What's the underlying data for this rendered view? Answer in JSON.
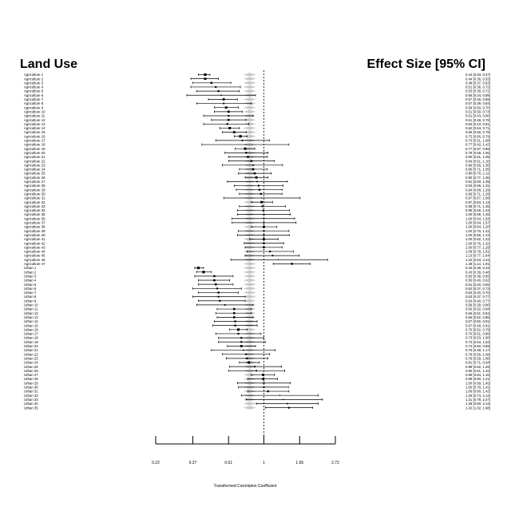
{
  "chart_data": {
    "type": "forest",
    "header_left": "Land Use",
    "header_right": "Effect Size [95% CI]",
    "xlabel": "Transformed Correlation Coefficient",
    "x_ticks": [
      "0.22",
      "0.37",
      "0.61",
      "1",
      "1.65",
      "2.72"
    ],
    "x_scale": "log",
    "xlim": [
      0.22,
      2.72
    ],
    "reference_line": 1,
    "studies": [
      {
        "label": "Agriculture 1",
        "est": 0.44,
        "lo": 0.4,
        "hi": 0.47,
        "ci": "0.44 [0.40, 0.47]"
      },
      {
        "label": "Agriculture 2",
        "est": 0.44,
        "lo": 0.36,
        "hi": 0.53,
        "ci": "0.44 [0.36, 0.53]"
      },
      {
        "label": "Agriculture 3",
        "est": 0.48,
        "lo": 0.37,
        "hi": 0.63,
        "ci": "0.48 [0.37, 0.63]"
      },
      {
        "label": "Agriculture 4",
        "est": 0.51,
        "lo": 0.36,
        "hi": 0.72,
        "ci": "0.51 [0.36, 0.72]"
      },
      {
        "label": "Agriculture 5",
        "est": 0.53,
        "lo": 0.39,
        "hi": 0.71,
        "ci": "0.53 [0.39, 0.71]"
      },
      {
        "label": "Agriculture 6",
        "est": 0.55,
        "lo": 0.34,
        "hi": 0.89,
        "ci": "0.55 [0.34, 0.89]"
      },
      {
        "label": "Agriculture 7",
        "est": 0.57,
        "lo": 0.46,
        "hi": 0.69,
        "ci": "0.57 [0.46, 0.69]"
      },
      {
        "label": "Agriculture 8",
        "est": 0.57,
        "lo": 0.39,
        "hi": 0.84,
        "ci": "0.57 [0.39, 0.84]"
      },
      {
        "label": "Agriculture 9",
        "est": 0.59,
        "lo": 0.5,
        "hi": 0.7,
        "ci": "0.59 [0.50, 0.70]"
      },
      {
        "label": "Agriculture 10",
        "est": 0.61,
        "lo": 0.5,
        "hi": 0.74,
        "ci": "0.61 [0.50, 0.74]"
      },
      {
        "label": "Agriculture 11",
        "est": 0.61,
        "lo": 0.43,
        "hi": 0.86,
        "ci": "0.61 [0.43, 0.86]"
      },
      {
        "label": "Agriculture 12",
        "est": 0.61,
        "lo": 0.48,
        "hi": 0.78,
        "ci": "0.61 [0.48, 0.78]"
      },
      {
        "label": "Agriculture 13",
        "est": 0.6,
        "lo": 0.43,
        "hi": 0.81,
        "ci": "0.60 [0.43, 0.81]"
      },
      {
        "label": "Agriculture 14",
        "est": 0.62,
        "lo": 0.54,
        "hi": 0.71,
        "ci": "0.62 [0.54, 0.71]"
      },
      {
        "label": "Agriculture 15",
        "est": 0.66,
        "lo": 0.56,
        "hi": 0.78,
        "ci": "0.66 [0.56, 0.78]"
      },
      {
        "label": "Agriculture 16",
        "est": 0.72,
        "lo": 0.66,
        "hi": 0.79,
        "ci": "0.72 [0.66, 0.79]"
      },
      {
        "label": "Agriculture 17",
        "est": 0.74,
        "lo": 0.51,
        "hi": 1.08,
        "ci": "0.74 [0.51, 1.08]"
      },
      {
        "label": "Agriculture 18",
        "est": 0.77,
        "lo": 0.42,
        "hi": 1.42,
        "ci": "0.77 [0.42, 1.42]"
      },
      {
        "label": "Agriculture 19",
        "est": 0.77,
        "lo": 0.67,
        "hi": 0.88,
        "ci": "0.77 [0.67, 0.88]"
      },
      {
        "label": "Agriculture 20",
        "est": 0.78,
        "lo": 0.58,
        "hi": 1.06,
        "ci": "0.78 [0.58, 1.06]"
      },
      {
        "label": "Agriculture 21",
        "est": 0.8,
        "lo": 0.61,
        "hi": 1.05,
        "ci": "0.80 [0.61, 1.05]"
      },
      {
        "label": "Agriculture 22",
        "est": 0.84,
        "lo": 0.61,
        "hi": 1.16,
        "ci": "0.84 [0.61, 1.16]"
      },
      {
        "label": "Agriculture 23",
        "est": 0.86,
        "lo": 0.56,
        "hi": 1.3,
        "ci": "0.86 [0.56, 1.30]"
      },
      {
        "label": "Agriculture 24",
        "est": 0.86,
        "lo": 0.71,
        "hi": 1.05,
        "ci": "0.86 [0.71, 1.05]"
      },
      {
        "label": "Agriculture 25",
        "est": 0.88,
        "lo": 0.7,
        "hi": 1.11,
        "ci": "0.88 [0.70, 1.11]"
      },
      {
        "label": "Agriculture 26",
        "est": 0.9,
        "lo": 0.77,
        "hi": 1.06,
        "ci": "0.90 [0.77, 1.06]"
      },
      {
        "label": "Agriculture 27",
        "est": 0.91,
        "lo": 0.6,
        "hi": 1.39,
        "ci": "0.91 [0.60, 1.39]"
      },
      {
        "label": "Agriculture 28",
        "est": 0.93,
        "lo": 0.66,
        "hi": 1.31,
        "ci": "0.93 [0.66, 1.31]"
      },
      {
        "label": "Agriculture 29",
        "est": 0.94,
        "lo": 0.68,
        "hi": 1.29,
        "ci": "0.94 [0.68, 1.29]"
      },
      {
        "label": "Agriculture 30",
        "est": 0.96,
        "lo": 0.71,
        "hi": 1.29,
        "ci": "0.96 [0.71, 1.29]"
      },
      {
        "label": "Agriculture 31",
        "est": 0.97,
        "lo": 0.57,
        "hi": 1.66,
        "ci": "0.97 [0.57, 1.66]"
      },
      {
        "label": "Agriculture 32",
        "est": 0.97,
        "lo": 0.84,
        "hi": 1.13,
        "ci": "0.97 [0.84, 1.13]"
      },
      {
        "label": "Agriculture 33",
        "est": 0.98,
        "lo": 0.71,
        "hi": 1.35,
        "ci": "0.98 [0.71, 1.35]"
      },
      {
        "label": "Agriculture 34",
        "est": 0.99,
        "lo": 0.69,
        "hi": 1.43,
        "ci": "0.99 [0.69, 1.43]"
      },
      {
        "label": "Agriculture 35",
        "est": 1.0,
        "lo": 0.69,
        "hi": 1.45,
        "ci": "1.00 [0.69, 1.45]"
      },
      {
        "label": "Agriculture 36",
        "est": 1.0,
        "lo": 0.64,
        "hi": 1.54,
        "ci": "1.00 [0.64, 1.54]"
      },
      {
        "label": "Agriculture 37",
        "est": 1.0,
        "lo": 0.64,
        "hi": 1.57,
        "ci": "1.00 [0.64, 1.57]"
      },
      {
        "label": "Agriculture 38",
        "est": 1.0,
        "lo": 0.84,
        "hi": 1.2,
        "ci": "1.00 [0.84, 1.20]"
      },
      {
        "label": "Agriculture 39",
        "est": 1.0,
        "lo": 0.7,
        "hi": 1.42,
        "ci": "1.00 [0.70, 1.42]"
      },
      {
        "label": "Agriculture 40",
        "est": 1.0,
        "lo": 0.69,
        "hi": 1.43,
        "ci": "1.00 [0.69, 1.43]"
      },
      {
        "label": "Agriculture 41",
        "est": 1.0,
        "lo": 0.82,
        "hi": 1.22,
        "ci": "1.00 [0.82, 1.22]"
      },
      {
        "label": "Agriculture 42",
        "est": 1.0,
        "lo": 0.76,
        "hi": 1.32,
        "ci": "1.00 [0.76, 1.32]"
      },
      {
        "label": "Agriculture 43",
        "est": 1.0,
        "lo": 0.77,
        "hi": 1.29,
        "ci": "1.00 [0.77, 1.29]"
      },
      {
        "label": "Agriculture 44",
        "est": 1.09,
        "lo": 0.79,
        "hi": 1.51,
        "ci": "1.09 [0.79, 1.51]"
      },
      {
        "label": "Agriculture 45",
        "est": 1.13,
        "lo": 0.77,
        "hi": 1.64,
        "ci": "1.13 [0.77, 1.64]"
      },
      {
        "label": "Agriculture 46",
        "est": 1.22,
        "lo": 0.63,
        "hi": 2.44,
        "ci": "1.22 [0.63, 2.44]"
      },
      {
        "label": "Agriculture 47",
        "est": 1.48,
        "lo": 1.14,
        "hi": 1.91,
        "ci": "1.48 [1.14, 1.91]"
      },
      {
        "label": "Urban 1",
        "est": 0.4,
        "lo": 0.38,
        "hi": 0.43,
        "ci": "0.40 [0.38, 0.43]"
      },
      {
        "label": "Urban 2",
        "est": 0.43,
        "lo": 0.39,
        "hi": 0.48,
        "ci": "0.43 [0.39, 0.48]"
      },
      {
        "label": "Urban 3",
        "est": 0.5,
        "lo": 0.38,
        "hi": 0.65,
        "ci": "0.50 [0.38, 0.65]"
      },
      {
        "label": "Urban 4",
        "est": 0.5,
        "lo": 0.4,
        "hi": 0.62,
        "ci": "0.50 [0.40, 0.62]"
      },
      {
        "label": "Urban 5",
        "est": 0.51,
        "lo": 0.4,
        "hi": 0.65,
        "ci": "0.51 [0.40, 0.65]"
      },
      {
        "label": "Urban 6",
        "est": 0.52,
        "lo": 0.37,
        "hi": 0.73,
        "ci": "0.52 [0.37, 0.73]"
      },
      {
        "label": "Urban 7",
        "est": 0.53,
        "lo": 0.4,
        "hi": 0.7,
        "ci": "0.53 [0.40, 0.70]"
      },
      {
        "label": "Urban 8",
        "est": 0.53,
        "lo": 0.37,
        "hi": 0.77,
        "ci": "0.53 [0.37, 0.77]"
      },
      {
        "label": "Urban 9",
        "est": 0.54,
        "lo": 0.4,
        "hi": 0.77,
        "ci": "0.54 [0.40, 0.77]"
      },
      {
        "label": "Urban 10",
        "est": 0.58,
        "lo": 0.39,
        "hi": 0.86,
        "ci": "0.58 [0.39, 0.86]"
      },
      {
        "label": "Urban 11",
        "est": 0.66,
        "lo": 0.52,
        "hi": 0.84,
        "ci": "0.66 [0.52, 0.84]"
      },
      {
        "label": "Urban 12",
        "est": 0.66,
        "lo": 0.51,
        "hi": 0.84,
        "ci": "0.66 [0.51, 0.84]"
      },
      {
        "label": "Urban 13",
        "est": 0.66,
        "lo": 0.52,
        "hi": 0.86,
        "ci": "0.66 [0.52, 0.86]"
      },
      {
        "label": "Urban 14",
        "est": 0.67,
        "lo": 0.5,
        "hi": 0.91,
        "ci": "0.67 [0.50, 0.91]"
      },
      {
        "label": "Urban 15",
        "est": 0.67,
        "lo": 0.49,
        "hi": 0.91,
        "ci": "0.67 [0.49, 0.91]"
      },
      {
        "label": "Urban 16",
        "est": 0.7,
        "lo": 0.62,
        "hi": 0.79,
        "ci": "0.70 [0.62, 0.79]"
      },
      {
        "label": "Urban 17",
        "est": 0.7,
        "lo": 0.51,
        "hi": 0.96,
        "ci": "0.70 [0.51, 0.96]"
      },
      {
        "label": "Urban 18",
        "est": 0.73,
        "lo": 0.53,
        "hi": 1.0,
        "ci": "0.73 [0.53, 1.00]"
      },
      {
        "label": "Urban 19",
        "est": 0.73,
        "lo": 0.53,
        "hi": 1.02,
        "ci": "0.73 [0.53, 1.02]"
      },
      {
        "label": "Urban 20",
        "est": 0.73,
        "lo": 0.6,
        "hi": 0.89,
        "ci": "0.73 [0.60, 0.89]"
      },
      {
        "label": "Urban 21",
        "est": 0.75,
        "lo": 0.48,
        "hi": 1.17,
        "ci": "0.75 [0.48, 1.17]"
      },
      {
        "label": "Urban 22",
        "est": 0.78,
        "lo": 0.56,
        "hi": 1.08,
        "ci": "0.78 [0.56, 1.08]"
      },
      {
        "label": "Urban 23",
        "est": 0.79,
        "lo": 0.59,
        "hi": 1.06,
        "ci": "0.79 [0.59, 1.06]"
      },
      {
        "label": "Urban 24",
        "est": 0.81,
        "lo": 0.71,
        "hi": 0.94,
        "ci": "0.81 [0.71, 0.94]"
      },
      {
        "label": "Urban 25",
        "est": 0.88,
        "lo": 0.62,
        "hi": 1.28,
        "ci": "0.88 [0.62, 1.28]"
      },
      {
        "label": "Urban 26",
        "est": 0.9,
        "lo": 0.61,
        "hi": 1.34,
        "ci": "0.90 [0.61, 1.34]"
      },
      {
        "label": "Urban 27",
        "est": 0.99,
        "lo": 0.84,
        "hi": 1.16,
        "ci": "0.99 [0.84, 1.16]"
      },
      {
        "label": "Urban 28",
        "est": 0.99,
        "lo": 0.8,
        "hi": 1.21,
        "ci": "0.99 [0.80, 1.21]"
      },
      {
        "label": "Urban 29",
        "est": 1.0,
        "lo": 0.69,
        "hi": 1.45,
        "ci": "1.00 [0.69, 1.45]"
      },
      {
        "label": "Urban 30",
        "est": 1.0,
        "lo": 0.7,
        "hi": 1.41,
        "ci": "1.00 [0.70, 1.41]"
      },
      {
        "label": "Urban 31",
        "est": 1.06,
        "lo": 0.8,
        "hi": 1.42,
        "ci": "1.06 [0.80, 1.42]"
      },
      {
        "label": "Urban 32",
        "est": 1.25,
        "lo": 0.73,
        "hi": 2.14,
        "ci": "1.25 [0.73, 2.14]"
      },
      {
        "label": "Urban 33",
        "est": 1.31,
        "lo": 0.78,
        "hi": 2.27,
        "ci": "1.31 [0.78, 2.27]"
      },
      {
        "label": "Urban 34",
        "est": 1.39,
        "lo": 0.9,
        "hi": 2.14,
        "ci": "1.39 [0.90, 2.14]"
      },
      {
        "label": "Urban 35",
        "est": 1.42,
        "lo": 1.02,
        "hi": 1.98,
        "ci": "1.42 [1.02, 1.98]"
      }
    ]
  }
}
